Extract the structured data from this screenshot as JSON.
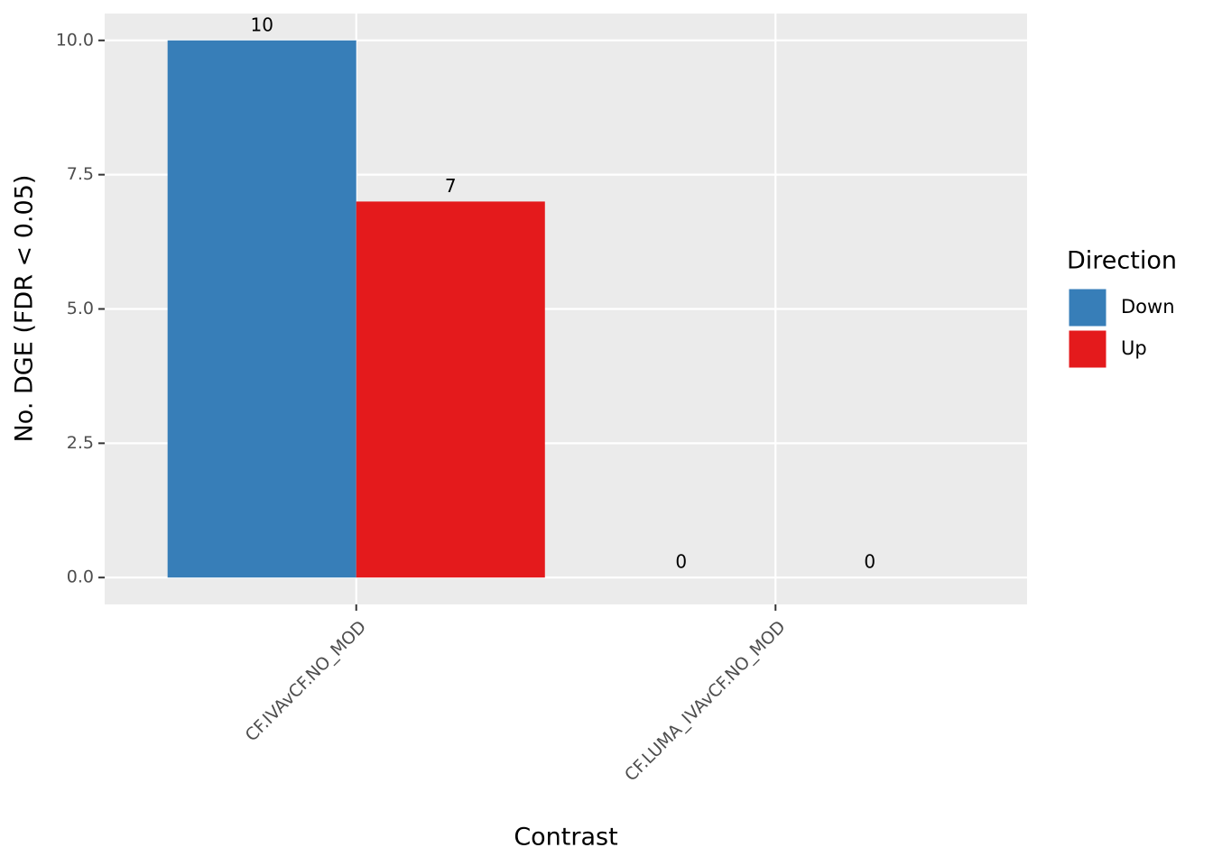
{
  "chart_data": {
    "type": "bar",
    "x_label": "Contrast",
    "y_label": "No. DGE (FDR < 0.05)",
    "categories": [
      "CF.IVAvCF.NO_MOD",
      "CF.LUMA_IVAvCF.NO_MOD"
    ],
    "series": [
      {
        "name": "Down",
        "color": "#377eb8",
        "values": [
          10,
          0
        ]
      },
      {
        "name": "Up",
        "color": "#e41a1c",
        "values": [
          7,
          0
        ]
      }
    ],
    "legend_title": "Direction",
    "ylim": [
      -0.5,
      10.5
    ],
    "yticks": [
      {
        "value": 0,
        "label": "0.0"
      },
      {
        "value": 2.5,
        "label": "2.5"
      },
      {
        "value": 5,
        "label": "5.0"
      },
      {
        "value": 7.5,
        "label": "7.5"
      },
      {
        "value": 10,
        "label": "10.0"
      }
    ],
    "grid": true,
    "legend_position": "right"
  }
}
